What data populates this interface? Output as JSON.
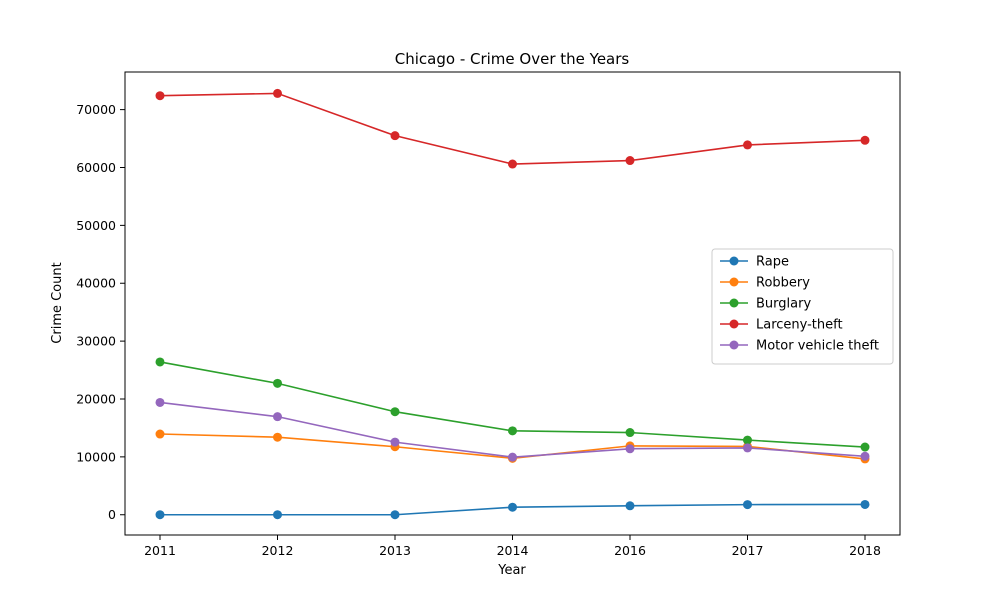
{
  "chart_data": {
    "type": "line",
    "title": "Chicago - Crime Over the Years",
    "xlabel": "Year",
    "ylabel": "Crime Count",
    "categories": [
      "2011",
      "2012",
      "2013",
      "2014",
      "2016",
      "2017",
      "2018"
    ],
    "ylim": [
      -3500,
      76500
    ],
    "yticks": [
      0,
      10000,
      20000,
      30000,
      40000,
      50000,
      60000,
      70000
    ],
    "ytick_labels": [
      "0",
      "10000",
      "20000",
      "30000",
      "40000",
      "50000",
      "60000",
      "70000"
    ],
    "grid": false,
    "legend_position": "center-right",
    "series": [
      {
        "name": "Rape",
        "color": "#1f77b4",
        "values": [
          0,
          0,
          0,
          1300,
          1550,
          1750,
          1780
        ]
      },
      {
        "name": "Robbery",
        "color": "#ff7f0e",
        "values": [
          13950,
          13400,
          11750,
          9750,
          11900,
          11800,
          9650
        ]
      },
      {
        "name": "Burglary",
        "color": "#2ca02c",
        "values": [
          26400,
          22700,
          17800,
          14500,
          14200,
          12900,
          11700
        ]
      },
      {
        "name": "Larceny-theft",
        "color": "#d62728",
        "values": [
          72400,
          72800,
          65500,
          60600,
          61200,
          63900,
          64700
        ]
      },
      {
        "name": "Motor vehicle theft",
        "color": "#9467bd",
        "values": [
          19400,
          16950,
          12550,
          9950,
          11400,
          11550,
          10100
        ]
      }
    ]
  }
}
